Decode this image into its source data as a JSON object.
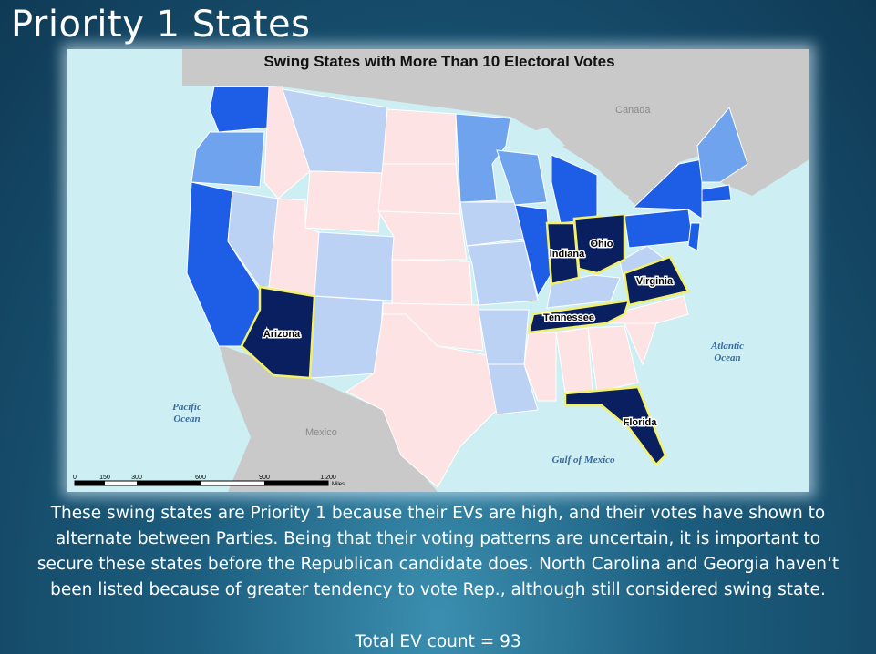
{
  "slide": {
    "title": "Priority 1 States",
    "map": {
      "title": "Swing States with More Than 10 Electoral Votes",
      "regions": [
        "Canada",
        "Mexico"
      ],
      "oceans": [
        "Pacific Ocean",
        "Atlantic Ocean",
        "Gulf of Mexico"
      ],
      "highlighted_states": [
        "Indiana",
        "Ohio",
        "Virginia",
        "Tennessee",
        "Arizona",
        "Florida"
      ],
      "scale_bar": {
        "ticks": [
          "0",
          "150",
          "300",
          "600",
          "900",
          "1,200"
        ],
        "unit": "Miles"
      }
    },
    "body": [
      "These swing states are Priority 1 because their EVs are high, and their votes have shown to",
      "alternate between Parties. Being that their voting patterns are uncertain, it is important to",
      "secure these states before the Republican candidate does. North Carolina and Georgia haven’t",
      "been listed because of greater tendency to vote Rep., although still considered swing state."
    ],
    "total": "Total EV count = 93"
  }
}
